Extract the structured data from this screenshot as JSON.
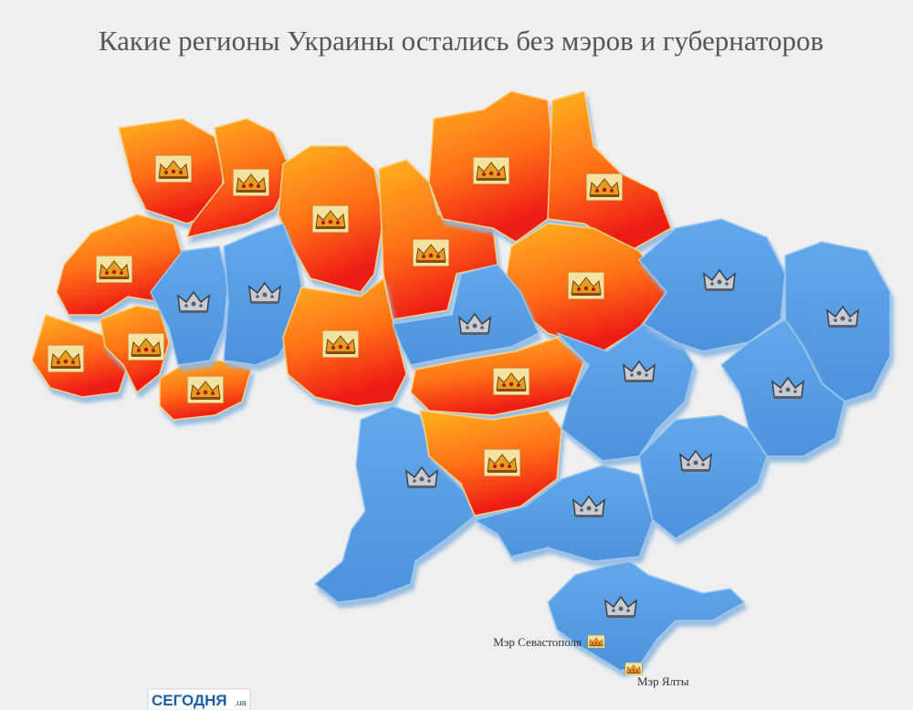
{
  "header": {
    "title": "Какие регионы Украины остались без мэров и губернаторов"
  },
  "labels": {
    "sevastopol": "Мэр Севастополя",
    "yalta": "Мэр Ялты"
  },
  "logo": {
    "name": "СЕГОДНЯ",
    "domain": ".ua"
  }
}
